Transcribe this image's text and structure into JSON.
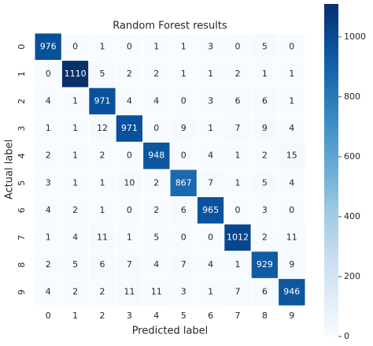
{
  "chart_data": {
    "type": "heatmap",
    "title": "Random Forest results",
    "xlabel": "Predicted label",
    "ylabel": "Actual label",
    "x_categories": [
      "0",
      "1",
      "2",
      "3",
      "4",
      "5",
      "6",
      "7",
      "8",
      "9"
    ],
    "y_categories": [
      "0",
      "1",
      "2",
      "3",
      "4",
      "5",
      "6",
      "7",
      "8",
      "9"
    ],
    "values": [
      [
        976,
        0,
        1,
        0,
        1,
        1,
        3,
        0,
        5,
        0
      ],
      [
        0,
        1110,
        5,
        2,
        2,
        1,
        1,
        2,
        1,
        1
      ],
      [
        4,
        1,
        971,
        4,
        4,
        0,
        3,
        6,
        6,
        1
      ],
      [
        1,
        1,
        12,
        971,
        0,
        9,
        1,
        7,
        9,
        4
      ],
      [
        2,
        1,
        2,
        0,
        948,
        0,
        4,
        1,
        2,
        15
      ],
      [
        3,
        1,
        1,
        10,
        2,
        867,
        7,
        1,
        5,
        4
      ],
      [
        4,
        2,
        1,
        0,
        2,
        6,
        965,
        0,
        3,
        0
      ],
      [
        1,
        4,
        11,
        1,
        5,
        0,
        0,
        1012,
        2,
        11
      ],
      [
        2,
        5,
        6,
        7,
        4,
        7,
        4,
        1,
        929,
        9
      ],
      [
        4,
        2,
        2,
        11,
        11,
        3,
        1,
        7,
        6,
        946
      ]
    ],
    "clim": [
      0,
      1110
    ],
    "cticks": [
      0,
      200,
      400,
      600,
      800,
      1000
    ],
    "colormap": [
      "#f7fbff",
      "#deebf7",
      "#c6dbef",
      "#9ecae1",
      "#6baed6",
      "#4292c6",
      "#2171b5",
      "#08519c",
      "#08306b"
    ]
  }
}
